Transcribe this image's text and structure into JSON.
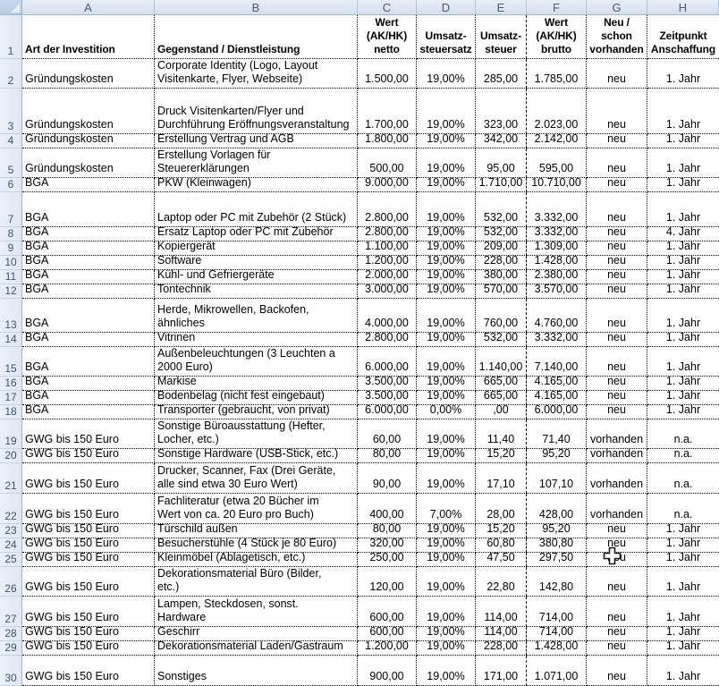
{
  "sheet": {
    "columns": [
      "A",
      "B",
      "C",
      "D",
      "E",
      "F",
      "G",
      "H"
    ],
    "header_row": {
      "row_number": "1",
      "a": "Art der Investition",
      "b": "Gegenstand / Dienstleistung",
      "c": "Wert\n(AK/HK)\nnetto",
      "d": "Umsatz-\nsteuersatz",
      "e": "Umsatz-\nsteuer",
      "f": "Wert\n(AK/HK)\nbrutto",
      "g": "Neu / schon\nvorhanden",
      "h": "Zeitpunkt\nAnschaffung"
    },
    "rows": [
      {
        "n": "2",
        "a": "Gründungskosten",
        "b": "Corporate Identity (Logo, Layout\nVisitenkarte, Flyer, Webseite)",
        "c": "1.500,00",
        "d": "19,00%",
        "e": "285,00",
        "f": "1.785,00",
        "g": "neu",
        "h": "1. Jahr"
      },
      {
        "n": "3",
        "a": "Gründungskosten",
        "b": "Druck Visitenkarten/Flyer und\nDurchführung Eröffnungsveranstaltung",
        "c": "1.700,00",
        "d": "19,00%",
        "e": "323,00",
        "f": "2.023,00",
        "g": "neu",
        "h": "1. Jahr"
      },
      {
        "n": "4",
        "a": "Gründungskosten",
        "b": "Erstellung Vertrag und AGB",
        "c": "1.800,00",
        "d": "19,00%",
        "e": "342,00",
        "f": "2.142,00",
        "g": "neu",
        "h": "1. Jahr"
      },
      {
        "n": "5",
        "a": "Gründungskosten",
        "b": "Erstellung Vorlagen für\nSteuererklärungen",
        "c": "500,00",
        "d": "19,00%",
        "e": "95,00",
        "f": "595,00",
        "g": "neu",
        "h": "1. Jahr"
      },
      {
        "n": "6",
        "a": "BGA",
        "b": "PKW (Kleinwagen)",
        "c": "9.000,00",
        "d": "19,00%",
        "e": "1.710,00",
        "f": "10.710,00",
        "g": "neu",
        "h": "1. Jahr"
      },
      {
        "n": "7",
        "a": "BGA",
        "b": "Laptop oder PC mit Zubehör (2 Stück)",
        "c": "2.800,00",
        "d": "19,00%",
        "e": "532,00",
        "f": "3.332,00",
        "g": "neu",
        "h": "1. Jahr"
      },
      {
        "n": "8",
        "a": "BGA",
        "b": "Ersatz Laptop oder PC mit Zubehör",
        "c": "2.800,00",
        "d": "19,00%",
        "e": "532,00",
        "f": "3.332,00",
        "g": "neu",
        "h": "4. Jahr"
      },
      {
        "n": "9",
        "a": "BGA",
        "b": "Kopiergerät",
        "c": "1.100,00",
        "d": "19,00%",
        "e": "209,00",
        "f": "1.309,00",
        "g": "neu",
        "h": "1. Jahr"
      },
      {
        "n": "10",
        "a": "BGA",
        "b": "Software",
        "c": "1.200,00",
        "d": "19,00%",
        "e": "228,00",
        "f": "1.428,00",
        "g": "neu",
        "h": "1. Jahr"
      },
      {
        "n": "11",
        "a": "BGA",
        "b": "Kühl- und Gefriergeräte",
        "c": "2.000,00",
        "d": "19,00%",
        "e": "380,00",
        "f": "2.380,00",
        "g": "neu",
        "h": "1. Jahr"
      },
      {
        "n": "12",
        "a": "BGA",
        "b": "Tontechnik",
        "c": "3.000,00",
        "d": "19,00%",
        "e": "570,00",
        "f": "3.570,00",
        "g": "neu",
        "h": "1. Jahr"
      },
      {
        "n": "13",
        "a": "BGA",
        "b": "Herde, Mikrowellen, Backofen,\nähnliches",
        "c": "4.000,00",
        "d": "19,00%",
        "e": "760,00",
        "f": "4.760,00",
        "g": "neu",
        "h": "1. Jahr"
      },
      {
        "n": "14",
        "a": "BGA",
        "b": "Vitrinen",
        "c": "2.800,00",
        "d": "19,00%",
        "e": "532,00",
        "f": "3.332,00",
        "g": "neu",
        "h": "1. Jahr"
      },
      {
        "n": "15",
        "a": "BGA",
        "b": "Außenbeleuchtungen (3 Leuchten a\n2000 Euro)",
        "c": "6.000,00",
        "d": "19,00%",
        "e": "1.140,00",
        "f": "7.140,00",
        "g": "neu",
        "h": "1. Jahr"
      },
      {
        "n": "16",
        "a": "BGA",
        "b": "Markise",
        "c": "3.500,00",
        "d": "19,00%",
        "e": "665,00",
        "f": "4.165,00",
        "g": "neu",
        "h": "1. Jahr"
      },
      {
        "n": "17",
        "a": "BGA",
        "b": "Bodenbelag (nicht fest eingebaut)",
        "c": "3.500,00",
        "d": "19,00%",
        "e": "665,00",
        "f": "4.165,00",
        "g": "neu",
        "h": "1. Jahr"
      },
      {
        "n": "18",
        "a": "BGA",
        "b": "Transporter (gebraucht, von privat)",
        "c": "6.000,00",
        "d": "0,00%",
        "e": ",00",
        "f": "6.000,00",
        "g": "neu",
        "h": "1. Jahr"
      },
      {
        "n": "19",
        "a": "GWG bis 150 Euro",
        "b": "Sonstige Büroausstattung (Hefter,\nLocher, etc.)",
        "c": "60,00",
        "d": "19,00%",
        "e": "11,40",
        "f": "71,40",
        "g": "vorhanden",
        "h": "n.a."
      },
      {
        "n": "20",
        "a": "GWG bis 150 Euro",
        "b": "Sonstige Hardware (USB-Stick, etc.)",
        "c": "80,00",
        "d": "19,00%",
        "e": "15,20",
        "f": "95,20",
        "g": "vorhanden",
        "h": "n.a."
      },
      {
        "n": "21",
        "a": "GWG bis 150 Euro",
        "b": "Drucker, Scanner, Fax (Drei Geräte,\nalle sind etwa 30 Euro Wert)",
        "c": "90,00",
        "d": "19,00%",
        "e": "17,10",
        "f": "107,10",
        "g": "vorhanden",
        "h": "n.a."
      },
      {
        "n": "22",
        "a": "GWG bis 150 Euro",
        "b": "Fachliteratur (etwa 20 Bücher im\nWert von ca. 20 Euro pro Buch)",
        "c": "400,00",
        "d": "7,00%",
        "e": "28,00",
        "f": "428,00",
        "g": "vorhanden",
        "h": "n.a."
      },
      {
        "n": "23",
        "a": "GWG bis 150 Euro",
        "b": "Türschild außen",
        "c": "80,00",
        "d": "19,00%",
        "e": "15,20",
        "f": "95,20",
        "g": "neu",
        "h": "1. Jahr"
      },
      {
        "n": "24",
        "a": "GWG bis 150 Euro",
        "b": "Besucherstühle (4 Stück je 80 Euro)",
        "c": "320,00",
        "d": "19,00%",
        "e": "60,80",
        "f": "380,80",
        "g": "neu",
        "h": "1. Jahr"
      },
      {
        "n": "25",
        "a": "GWG bis 150 Euro",
        "b": "Kleinmöbel (Ablagetisch, etc.)",
        "c": "250,00",
        "d": "19,00%",
        "e": "47,50",
        "f": "297,50",
        "g": "neu",
        "h": "1. Jahr"
      },
      {
        "n": "26",
        "a": "GWG bis 150 Euro",
        "b": "Dekorationsmaterial Büro (Bilder,\netc.)",
        "c": "120,00",
        "d": "19,00%",
        "e": "22,80",
        "f": "142,80",
        "g": "neu",
        "h": "1. Jahr"
      },
      {
        "n": "27",
        "a": "GWG bis 150 Euro",
        "b": "Lampen, Steckdosen, sonst.\nHardware",
        "c": "600,00",
        "d": "19,00%",
        "e": "114,00",
        "f": "714,00",
        "g": "neu",
        "h": "1. Jahr"
      },
      {
        "n": "28",
        "a": "GWG bis 150 Euro",
        "b": "Geschirr",
        "c": "600,00",
        "d": "19,00%",
        "e": "114,00",
        "f": "714,00",
        "g": "neu",
        "h": "1. Jahr"
      },
      {
        "n": "29",
        "a": "GWG bis 150 Euro",
        "b": "Dekorationsmaterial Laden/Gastraum",
        "c": "1.200,00",
        "d": "19,00%",
        "e": "228,00",
        "f": "1.428,00",
        "g": "neu",
        "h": "1. Jahr"
      },
      {
        "n": "30",
        "a": "GWG bis 150 Euro",
        "b": "Sonstiges",
        "c": "900,00",
        "d": "19,00%",
        "e": "171,00",
        "f": "1.071,00",
        "g": "neu",
        "h": "1. Jahr"
      }
    ],
    "cursor": "excel-plus-cursor",
    "colors": {
      "grid_border": "#000000",
      "page_break_line": "#000000",
      "header_text": "#4a5a70",
      "header_bg": "#dde6f1",
      "rowhead_bg": "#e7eef7",
      "header_border": "#9eb6ce",
      "cell_bg": "#ffffff",
      "cell_text": "#000000"
    }
  }
}
